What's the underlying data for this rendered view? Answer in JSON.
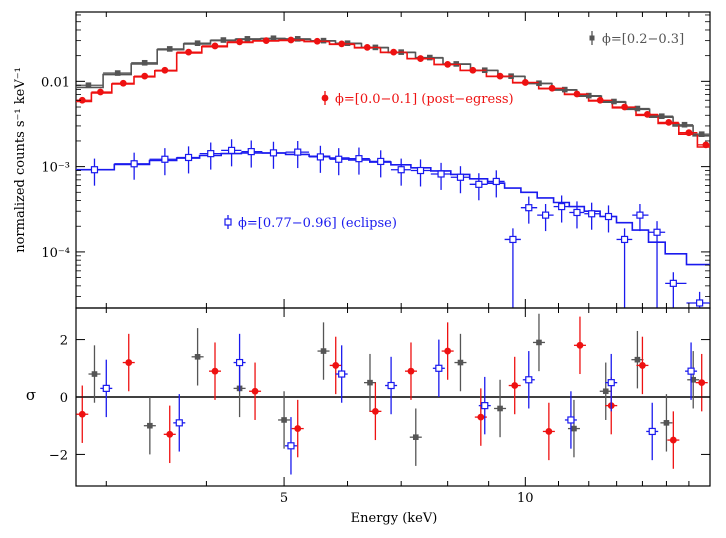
{
  "chart_data": {
    "type": "scatter",
    "xscale": "log",
    "xlim": [
      2.75,
      17.0
    ],
    "xticks": [
      {
        "value": 5,
        "label": "5"
      },
      {
        "value": 10,
        "label": "10"
      }
    ],
    "xlabel": "Energy (keV)",
    "top_panel": {
      "ylabel": "normalized counts s⁻¹ keV⁻¹",
      "yscale": "log",
      "ylim": [
        2.2e-05,
        0.065
      ],
      "yticks": [
        {
          "value": 0.01,
          "label": "0.01"
        },
        {
          "value": 0.001,
          "label": "10⁻³"
        },
        {
          "value": 0.0001,
          "label": "10⁻⁴"
        }
      ]
    },
    "bottom_panel": {
      "ylabel": "σ",
      "ylim": [
        -3.1,
        3.1
      ],
      "yticks": [
        {
          "value": 2,
          "label": "2"
        },
        {
          "value": 0,
          "label": "0"
        },
        {
          "value": -2,
          "label": "−2"
        }
      ]
    },
    "series": [
      {
        "name": "phase_02_03",
        "legend": "ϕ=[0.2−0.3]",
        "color": "#555555",
        "marker": "square",
        "x": [
          2.85,
          3.1,
          3.35,
          3.6,
          3.9,
          4.2,
          4.5,
          4.85,
          5.2,
          5.6,
          6.0,
          6.5,
          7.0,
          7.6,
          8.2,
          8.9,
          9.6,
          10.4,
          11.2,
          12.0,
          12.9,
          13.8,
          14.8,
          15.8,
          16.6
        ],
        "y": [
          0.009,
          0.0125,
          0.0165,
          0.024,
          0.028,
          0.0305,
          0.0315,
          0.032,
          0.0315,
          0.03,
          0.028,
          0.025,
          0.022,
          0.019,
          0.016,
          0.0135,
          0.0115,
          0.0095,
          0.008,
          0.0068,
          0.0058,
          0.0048,
          0.0039,
          0.0031,
          0.0024
        ],
        "model": [
          0.0085,
          0.012,
          0.016,
          0.0235,
          0.0275,
          0.03,
          0.031,
          0.0315,
          0.031,
          0.0297,
          0.0277,
          0.0248,
          0.0218,
          0.0188,
          0.0159,
          0.0134,
          0.0114,
          0.0094,
          0.0079,
          0.0067,
          0.0057,
          0.0047,
          0.0038,
          0.003,
          0.0023
        ]
      },
      {
        "name": "phase_00_01",
        "legend": "ϕ=[0.0−0.1] (post−egress)",
        "color": "#ee1111",
        "marker": "circle",
        "x": [
          2.8,
          2.95,
          3.15,
          3.35,
          3.55,
          3.8,
          4.1,
          4.4,
          4.75,
          5.1,
          5.5,
          5.9,
          6.35,
          6.85,
          7.4,
          8.0,
          8.6,
          9.3,
          10.0,
          10.8,
          11.6,
          12.4,
          13.3,
          14.2,
          15.1,
          16.0,
          16.8
        ],
        "y": [
          0.006,
          0.0075,
          0.0095,
          0.0115,
          0.0135,
          0.022,
          0.026,
          0.029,
          0.03,
          0.0305,
          0.0295,
          0.0275,
          0.025,
          0.022,
          0.0185,
          0.0158,
          0.0135,
          0.0115,
          0.0097,
          0.0083,
          0.0071,
          0.006,
          0.005,
          0.0041,
          0.0033,
          0.0025,
          0.0018
        ],
        "model": [
          0.0058,
          0.0073,
          0.0093,
          0.0113,
          0.0133,
          0.0215,
          0.0255,
          0.0285,
          0.0297,
          0.0302,
          0.0292,
          0.0272,
          0.0247,
          0.0218,
          0.0184,
          0.0157,
          0.0134,
          0.0114,
          0.0096,
          0.0082,
          0.007,
          0.0059,
          0.0049,
          0.004,
          0.0032,
          0.0024,
          0.0017
        ]
      },
      {
        "name": "phase_077_096",
        "legend": "ϕ=[0.77−0.96] (eclipse)",
        "color": "#1a1aee",
        "marker": "open-square",
        "x": [
          2.9,
          3.25,
          3.55,
          3.8,
          4.05,
          4.3,
          4.55,
          4.85,
          5.2,
          5.55,
          5.85,
          6.2,
          6.6,
          7.0,
          7.4,
          7.85,
          8.3,
          8.75,
          9.2,
          9.65,
          10.1,
          10.6,
          11.1,
          11.6,
          12.1,
          12.7,
          13.3,
          13.9,
          14.6,
          15.3,
          16.5
        ],
        "y": [
          0.00092,
          0.00108,
          0.00122,
          0.00128,
          0.00142,
          0.00155,
          0.0015,
          0.00145,
          0.00148,
          0.0013,
          0.00122,
          0.00124,
          0.00115,
          0.00092,
          0.0009,
          0.00082,
          0.00075,
          0.00062,
          0.00067,
          0.00014,
          0.00033,
          0.00027,
          0.00034,
          0.00029,
          0.00028,
          0.00026,
          0.00014,
          0.00027,
          0.00017,
          4.28e-05,
          2.52e-05
        ],
        "model": [
          0.00092,
          0.00106,
          0.00118,
          0.00126,
          0.00135,
          0.00142,
          0.00145,
          0.00144,
          0.00139,
          0.00132,
          0.00126,
          0.0012,
          0.00113,
          0.00105,
          0.00097,
          0.00089,
          0.00081,
          0.00072,
          0.00064,
          0.00056,
          0.0005,
          0.00043,
          0.00038,
          0.00034,
          0.0003,
          0.00026,
          0.00022,
          0.00018,
          0.00013,
          9.5e-05,
          7.1e-05
        ]
      }
    ],
    "residuals": {
      "phase_02_03": {
        "x": [
          2.9,
          3.4,
          3.9,
          4.4,
          5.0,
          5.6,
          6.4,
          7.3,
          8.3,
          9.3,
          10.4,
          11.5,
          12.6,
          13.8,
          15.0,
          16.2
        ],
        "y": [
          0.8,
          -1.0,
          1.4,
          0.3,
          -0.8,
          1.6,
          0.5,
          -1.4,
          1.2,
          -0.4,
          1.9,
          -1.1,
          0.2,
          1.3,
          -0.9,
          0.6
        ]
      },
      "phase_00_01": {
        "x": [
          2.8,
          3.2,
          3.6,
          4.1,
          4.6,
          5.2,
          5.8,
          6.5,
          7.2,
          8.0,
          8.8,
          9.7,
          10.7,
          11.7,
          12.8,
          14.0,
          15.3,
          16.6
        ],
        "y": [
          -0.6,
          1.2,
          -1.3,
          0.9,
          0.2,
          -1.1,
          1.1,
          -0.5,
          0.9,
          1.6,
          -0.7,
          0.4,
          -1.2,
          1.8,
          -0.3,
          1.1,
          -1.5,
          0.5
        ]
      },
      "phase_077_096": {
        "x": [
          3.0,
          3.7,
          4.4,
          5.1,
          5.9,
          6.8,
          7.8,
          8.9,
          10.1,
          11.4,
          12.8,
          14.4,
          16.1
        ],
        "y": [
          0.3,
          -0.9,
          1.2,
          -1.7,
          0.8,
          0.4,
          1.0,
          -0.3,
          0.6,
          -0.8,
          0.5,
          -1.2,
          0.9
        ]
      }
    }
  }
}
